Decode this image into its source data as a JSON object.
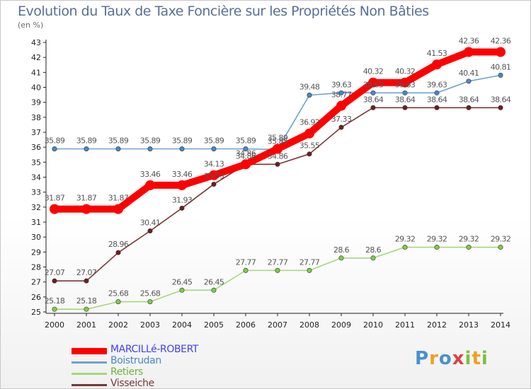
{
  "chart_data": {
    "type": "line",
    "title": "Evolution du Taux de Taxe Foncière sur les Propriétés Non Bâties",
    "ylabel": "(en %)",
    "xlabel": "",
    "ylim": [
      25,
      43
    ],
    "y_ticks": [
      "25",
      "26",
      "27",
      "28",
      "29",
      "30",
      "31",
      "32",
      "33",
      "34",
      "35",
      "36",
      "37",
      "38",
      "39",
      "40",
      "41",
      "42",
      "43"
    ],
    "categories": [
      "2000",
      "2001",
      "2002",
      "2003",
      "2004",
      "2005",
      "2006",
      "2007",
      "2008",
      "2009",
      "2010",
      "2011",
      "2012",
      "2013",
      "2014"
    ],
    "series": [
      {
        "name": "MARCILLé-ROBERT",
        "color": "#ff0000",
        "text_color": "#4040ff",
        "width": "thick",
        "values": [
          31.87,
          31.87,
          31.87,
          33.46,
          33.46,
          34.13,
          34.86,
          35.89,
          36.92,
          38.77,
          40.32,
          40.32,
          41.53,
          42.36,
          42.36
        ],
        "labels": [
          "31.87",
          "31.87",
          "31.87",
          "33.46",
          "33.46",
          "34.13",
          "34.86",
          "35.89",
          "36.92",
          "38.77",
          "40.32",
          "40.32",
          "41.53",
          "42.36",
          "42.36"
        ]
      },
      {
        "name": "Boistrudan",
        "color": "#6da2cf",
        "text_color": "#4f86c6",
        "marker_color": "#4a87c8",
        "width": "thin",
        "values": [
          35.89,
          35.89,
          35.89,
          35.89,
          35.89,
          35.89,
          35.89,
          35.85,
          39.48,
          39.63,
          39.63,
          39.63,
          39.63,
          40.41,
          40.81
        ],
        "labels": [
          "35.89",
          "35.89",
          "35.89",
          "35.89",
          "35.89",
          "35.89",
          "35.89",
          "35.85",
          "39.48",
          "39.63",
          "39.63",
          "39.63",
          "39.63",
          "40.41",
          "40.81"
        ]
      },
      {
        "name": "Retiers",
        "color": "#a6d879",
        "text_color": "#6fb33c",
        "marker_color": "#7fcc4a",
        "width": "thin",
        "values": [
          25.18,
          25.18,
          25.68,
          25.68,
          26.45,
          26.45,
          27.77,
          27.77,
          27.77,
          28.6,
          28.6,
          29.32,
          29.32,
          29.32,
          29.32
        ],
        "labels": [
          "25.18",
          "25.18",
          "25.68",
          "25.68",
          "26.45",
          "26.45",
          "27.77",
          "27.77",
          "27.77",
          "28.6",
          "28.6",
          "29.32",
          "29.32",
          "29.32",
          "29.32"
        ]
      },
      {
        "name": "Visseiche",
        "color": "#7a3636",
        "text_color": "#7a3a3a",
        "marker_color": "#6e1e1e",
        "width": "thin",
        "values": [
          27.07,
          27.07,
          28.96,
          30.41,
          31.93,
          33.53,
          34.86,
          34.86,
          35.55,
          37.33,
          38.64,
          38.64,
          38.64,
          38.64,
          38.64
        ],
        "labels": [
          "27.07",
          "27.07",
          "28.96",
          "30.41",
          "31.93",
          "33.53",
          "34.86",
          "34.86",
          "35.55",
          "37.33",
          "38.64",
          "38.64",
          "38.64",
          "38.64",
          "38.64"
        ]
      }
    ],
    "legend_position": "bottom-left"
  },
  "brand": {
    "letters": [
      "P",
      "r",
      "o",
      "x",
      "i",
      "t",
      "i"
    ],
    "colors": [
      "#4a90d0",
      "#f0a020",
      "#4a90d0",
      "#e04040",
      "#7cc043",
      "#f0a020",
      "#7cc043"
    ]
  }
}
